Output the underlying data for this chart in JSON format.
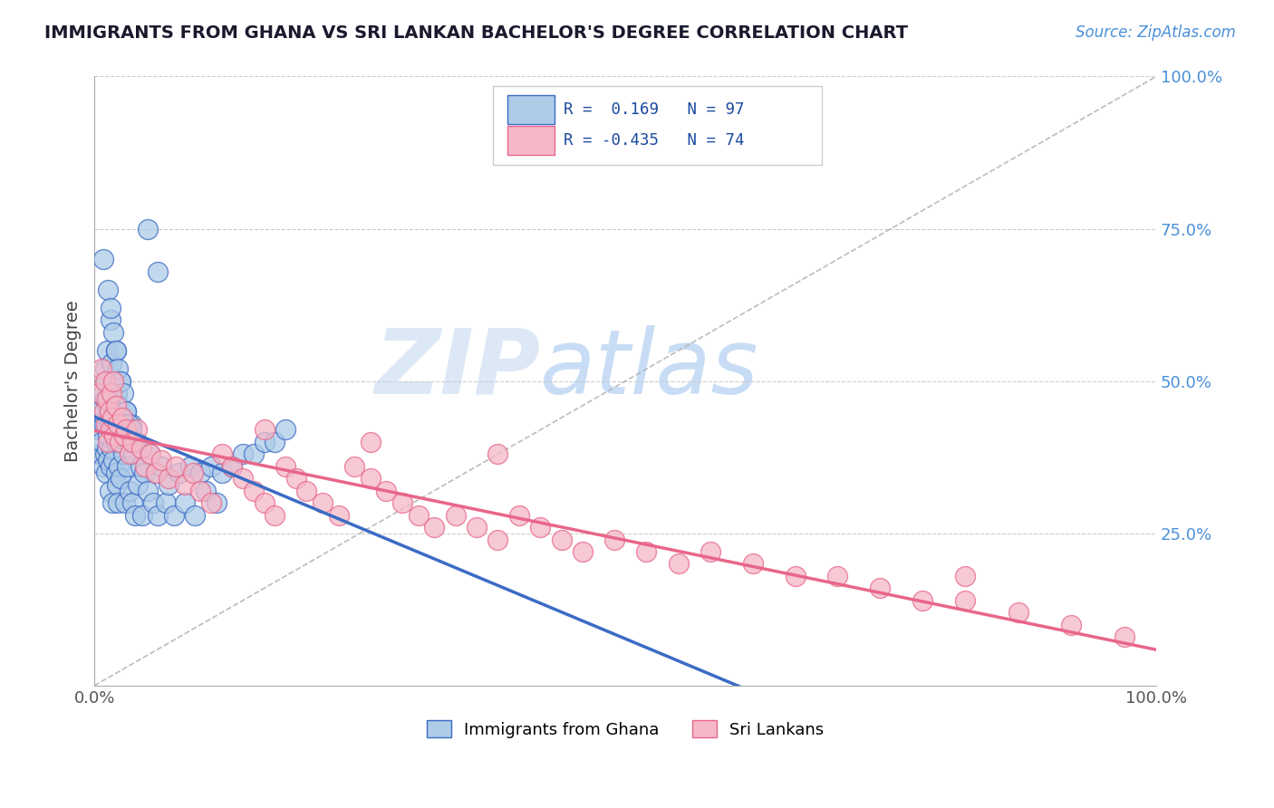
{
  "title": "IMMIGRANTS FROM GHANA VS SRI LANKAN BACHELOR'S DEGREE CORRELATION CHART",
  "source_text": "Source: ZipAtlas.com",
  "ylabel": "Bachelor's Degree",
  "color_ghana": "#aecbe8",
  "color_srilanka": "#f4b8c8",
  "color_line_ghana": "#3b6bc4",
  "color_line_srilanka": "#e8668a",
  "color_diag": "#b0b0b0",
  "watermark_color": "#dce8f5",
  "ghana_x": [
    0.005,
    0.005,
    0.005,
    0.007,
    0.008,
    0.008,
    0.009,
    0.01,
    0.01,
    0.01,
    0.011,
    0.011,
    0.012,
    0.012,
    0.012,
    0.013,
    0.013,
    0.013,
    0.014,
    0.014,
    0.015,
    0.015,
    0.015,
    0.016,
    0.016,
    0.017,
    0.017,
    0.018,
    0.018,
    0.019,
    0.02,
    0.02,
    0.02,
    0.021,
    0.021,
    0.022,
    0.022,
    0.023,
    0.023,
    0.024,
    0.025,
    0.025,
    0.026,
    0.027,
    0.028,
    0.029,
    0.03,
    0.031,
    0.032,
    0.033,
    0.035,
    0.036,
    0.037,
    0.038,
    0.04,
    0.041,
    0.043,
    0.045,
    0.047,
    0.05,
    0.052,
    0.055,
    0.058,
    0.06,
    0.063,
    0.067,
    0.07,
    0.075,
    0.08,
    0.085,
    0.09,
    0.095,
    0.1,
    0.105,
    0.11,
    0.115,
    0.12,
    0.13,
    0.14,
    0.15,
    0.16,
    0.17,
    0.18,
    0.05,
    0.06,
    0.008,
    0.013,
    0.015,
    0.018,
    0.02,
    0.022,
    0.025,
    0.027,
    0.03,
    0.032,
    0.035,
    0.038
  ],
  "ghana_y": [
    0.42,
    0.38,
    0.45,
    0.4,
    0.48,
    0.36,
    0.43,
    0.52,
    0.38,
    0.47,
    0.5,
    0.35,
    0.44,
    0.39,
    0.55,
    0.41,
    0.37,
    0.46,
    0.43,
    0.32,
    0.6,
    0.48,
    0.36,
    0.53,
    0.39,
    0.44,
    0.3,
    0.5,
    0.37,
    0.42,
    0.55,
    0.4,
    0.35,
    0.48,
    0.33,
    0.43,
    0.3,
    0.46,
    0.36,
    0.4,
    0.5,
    0.34,
    0.44,
    0.38,
    0.41,
    0.3,
    0.45,
    0.36,
    0.4,
    0.32,
    0.43,
    0.3,
    0.38,
    0.28,
    0.4,
    0.33,
    0.36,
    0.28,
    0.35,
    0.32,
    0.38,
    0.3,
    0.35,
    0.28,
    0.36,
    0.3,
    0.33,
    0.28,
    0.35,
    0.3,
    0.36,
    0.28,
    0.35,
    0.32,
    0.36,
    0.3,
    0.35,
    0.36,
    0.38,
    0.38,
    0.4,
    0.4,
    0.42,
    0.75,
    0.68,
    0.7,
    0.65,
    0.62,
    0.58,
    0.55,
    0.52,
    0.5,
    0.48,
    0.45,
    0.43,
    0.42,
    0.4
  ],
  "srilanka_x": [
    0.005,
    0.007,
    0.009,
    0.01,
    0.011,
    0.012,
    0.013,
    0.014,
    0.015,
    0.016,
    0.017,
    0.018,
    0.019,
    0.02,
    0.022,
    0.024,
    0.026,
    0.028,
    0.03,
    0.033,
    0.036,
    0.04,
    0.044,
    0.048,
    0.053,
    0.058,
    0.063,
    0.07,
    0.077,
    0.085,
    0.093,
    0.1,
    0.11,
    0.12,
    0.13,
    0.14,
    0.15,
    0.16,
    0.17,
    0.18,
    0.19,
    0.2,
    0.215,
    0.23,
    0.245,
    0.26,
    0.275,
    0.29,
    0.305,
    0.32,
    0.34,
    0.36,
    0.38,
    0.4,
    0.42,
    0.44,
    0.46,
    0.49,
    0.52,
    0.55,
    0.58,
    0.62,
    0.66,
    0.7,
    0.74,
    0.78,
    0.82,
    0.87,
    0.92,
    0.97,
    0.16,
    0.26,
    0.38,
    0.82
  ],
  "srilanka_y": [
    0.48,
    0.52,
    0.45,
    0.5,
    0.43,
    0.47,
    0.4,
    0.45,
    0.42,
    0.48,
    0.44,
    0.5,
    0.41,
    0.46,
    0.43,
    0.4,
    0.44,
    0.41,
    0.42,
    0.38,
    0.4,
    0.42,
    0.39,
    0.36,
    0.38,
    0.35,
    0.37,
    0.34,
    0.36,
    0.33,
    0.35,
    0.32,
    0.3,
    0.38,
    0.36,
    0.34,
    0.32,
    0.3,
    0.28,
    0.36,
    0.34,
    0.32,
    0.3,
    0.28,
    0.36,
    0.34,
    0.32,
    0.3,
    0.28,
    0.26,
    0.28,
    0.26,
    0.24,
    0.28,
    0.26,
    0.24,
    0.22,
    0.24,
    0.22,
    0.2,
    0.22,
    0.2,
    0.18,
    0.18,
    0.16,
    0.14,
    0.14,
    0.12,
    0.1,
    0.08,
    0.42,
    0.4,
    0.38,
    0.18
  ],
  "xlim": [
    0.0,
    1.0
  ],
  "ylim": [
    0.0,
    1.0
  ],
  "title_color": "#1a1a2e",
  "source_color": "#4a90d9",
  "axis_tick_color": "#555555",
  "right_tick_color": "#4a90d9",
  "grid_color": "#cccccc"
}
